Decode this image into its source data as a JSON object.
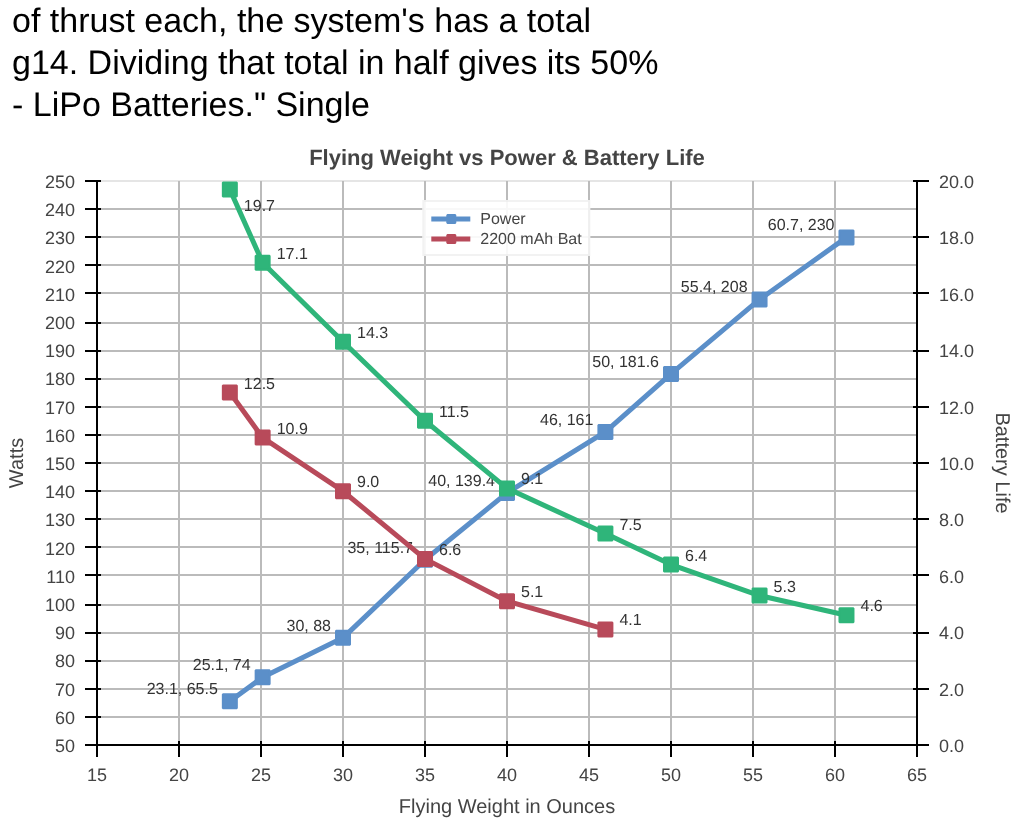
{
  "chart_data": {
    "type": "line",
    "title": "Flying Weight vs Power & Battery Life",
    "xlabel": "Flying Weight in Ounces",
    "ylabel": "Watts",
    "y2label": "Battery Life",
    "annotations": [
      "of thrust each, the system's has a total",
      "g14. Dividing that total in half gives its 50%",
      "- LiPo Batteries.\" Single"
    ],
    "xlim": [
      15,
      65
    ],
    "xticks": [
      15,
      20,
      25,
      30,
      35,
      40,
      45,
      50,
      55,
      60,
      65
    ],
    "ylim": [
      50,
      250
    ],
    "yticks": [
      50,
      60,
      70,
      80,
      90,
      100,
      110,
      120,
      130,
      140,
      150,
      160,
      170,
      180,
      190,
      200,
      210,
      220,
      230,
      240,
      250
    ],
    "y2lim": [
      0,
      20
    ],
    "y2ticks": [
      {
        "value": 0,
        "label": "0.0"
      },
      {
        "value": 2,
        "label": "2.0"
      },
      {
        "value": 4,
        "label": "4.0"
      },
      {
        "value": 6,
        "label": "6.0"
      },
      {
        "value": 8,
        "label": "8.0"
      },
      {
        "value": 10,
        "label": "10.0"
      },
      {
        "value": 12,
        "label": "12.0"
      },
      {
        "value": 14,
        "label": "14.0"
      },
      {
        "value": 16,
        "label": "16.0"
      },
      {
        "value": 18,
        "label": "18.0"
      },
      {
        "value": 20,
        "label": "20.0"
      }
    ],
    "grid": true,
    "legend": "top",
    "marker": "square",
    "line_style": "solid",
    "series": [
      {
        "name": "Power",
        "color": "#5b8fc9",
        "x": [
          23.1,
          25.1,
          30,
          35,
          40,
          46,
          50,
          55.4,
          60.7
        ],
        "values": [
          65.5,
          74,
          88,
          115.7,
          139.4,
          161,
          181.6,
          208,
          230
        ],
        "value_labels": [
          "23.1, 65.5",
          "25.1, 74",
          "30, 88",
          "35, 115.7",
          "40, 139.4",
          "46, 161",
          "50, 181.6",
          "55.4, 208",
          "60.7, 230"
        ]
      },
      {
        "color": "#2fb57a",
        "axis": "y2",
        "x": [
          23.1,
          25.1,
          30,
          35,
          40,
          46,
          50,
          55.4,
          60.7
        ],
        "values": [
          19.7,
          17.1,
          14.3,
          11.5,
          9.1,
          7.5,
          6.4,
          5.3,
          4.6
        ],
        "value_labels": [
          "19.7",
          "17.1",
          "14.3",
          "11.5",
          "9.1",
          "7.5",
          "6.4",
          "5.3",
          "4.6"
        ]
      },
      {
        "name": "2200 mAh Bat",
        "color": "#b84a5a",
        "axis": "y2",
        "x": [
          23.1,
          25.1,
          30,
          35,
          40,
          46
        ],
        "values": [
          12.5,
          10.9,
          9.0,
          6.6,
          5.1,
          4.1
        ],
        "value_labels": [
          "12.5",
          "10.9",
          "9.0",
          "6.6",
          "5.1",
          "4.1"
        ]
      }
    ]
  }
}
